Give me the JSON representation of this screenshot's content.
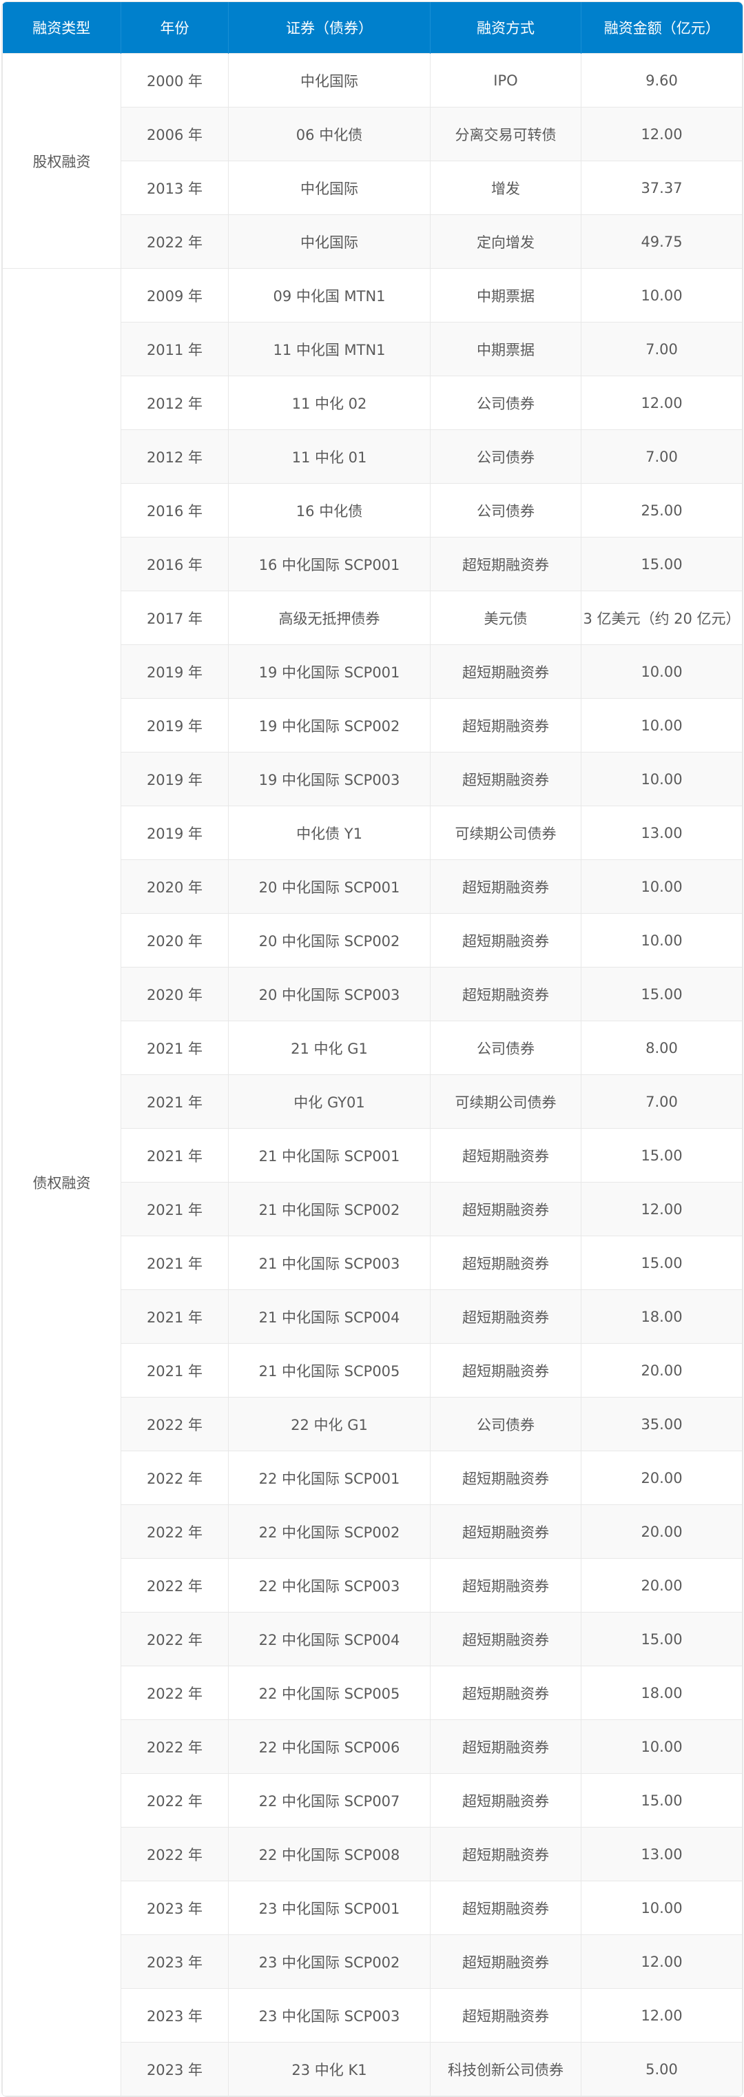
{
  "header": {
    "type": "融资类型",
    "year": "年份",
    "security": "证券（债券）",
    "method": "融资方式",
    "amount": "融资金额（亿元）"
  },
  "groups": [
    {
      "type": "股权融资",
      "rows": [
        [
          "2000 年",
          "中化国际",
          "IPO",
          "9.60"
        ],
        [
          "2006 年",
          "06 中化债",
          "分离交易可转债",
          "12.00"
        ],
        [
          "2013 年",
          "中化国际",
          "增发",
          "37.37"
        ],
        [
          "2022 年",
          "中化国际",
          "定向增发",
          "49.75"
        ]
      ]
    },
    {
      "type": "债权融资",
      "rows": [
        [
          "2009 年",
          "09 中化国 MTN1",
          "中期票据",
          "10.00"
        ],
        [
          "2011 年",
          "11 中化国 MTN1",
          "中期票据",
          "7.00"
        ],
        [
          "2012 年",
          "11 中化 02",
          "公司债券",
          "12.00"
        ],
        [
          "2012 年",
          "11 中化 01",
          "公司债券",
          "7.00"
        ],
        [
          "2016 年",
          "16 中化债",
          "公司债券",
          "25.00"
        ],
        [
          "2016 年",
          "16 中化国际 SCP001",
          "超短期融资券",
          "15.00"
        ],
        [
          "2017 年",
          "高级无抵押债券",
          "美元债",
          "3 亿美元（约 20 亿元）"
        ],
        [
          "2019 年",
          "19 中化国际 SCP001",
          "超短期融资券",
          "10.00"
        ],
        [
          "2019 年",
          "19 中化国际 SCP002",
          "超短期融资券",
          "10.00"
        ],
        [
          "2019 年",
          "19 中化国际 SCP003",
          "超短期融资券",
          "10.00"
        ],
        [
          "2019 年",
          "中化债 Y1",
          "可续期公司债券",
          "13.00"
        ],
        [
          "2020 年",
          "20 中化国际 SCP001",
          "超短期融资券",
          "10.00"
        ],
        [
          "2020 年",
          "20 中化国际 SCP002",
          "超短期融资券",
          "10.00"
        ],
        [
          "2020 年",
          "20 中化国际 SCP003",
          "超短期融资券",
          "15.00"
        ],
        [
          "2021 年",
          "21 中化 G1",
          "公司债券",
          "8.00"
        ],
        [
          "2021 年",
          "中化 GY01",
          "可续期公司债券",
          "7.00"
        ],
        [
          "2021 年",
          "21 中化国际 SCP001",
          "超短期融资券",
          "15.00"
        ],
        [
          "2021 年",
          "21 中化国际 SCP002",
          "超短期融资券",
          "12.00"
        ],
        [
          "2021 年",
          "21 中化国际 SCP003",
          "超短期融资券",
          "15.00"
        ],
        [
          "2021 年",
          "21 中化国际 SCP004",
          "超短期融资券",
          "18.00"
        ],
        [
          "2021 年",
          "21 中化国际 SCP005",
          "超短期融资券",
          "20.00"
        ],
        [
          "2022 年",
          "22 中化 G1",
          "公司债券",
          "35.00"
        ],
        [
          "2022 年",
          "22 中化国际 SCP001",
          "超短期融资券",
          "20.00"
        ],
        [
          "2022 年",
          "22 中化国际 SCP002",
          "超短期融资券",
          "20.00"
        ],
        [
          "2022 年",
          "22 中化国际 SCP003",
          "超短期融资券",
          "20.00"
        ],
        [
          "2022 年",
          "22 中化国际 SCP004",
          "超短期融资券",
          "15.00"
        ],
        [
          "2022 年",
          "22 中化国际 SCP005",
          "超短期融资券",
          "18.00"
        ],
        [
          "2022 年",
          "22 中化国际 SCP006",
          "超短期融资券",
          "10.00"
        ],
        [
          "2022 年",
          "22 中化国际 SCP007",
          "超短期融资券",
          "15.00"
        ],
        [
          "2022 年",
          "22 中化国际 SCP008",
          "超短期融资券",
          "13.00"
        ],
        [
          "2023 年",
          "23 中化国际 SCP001",
          "超短期融资券",
          "10.00"
        ],
        [
          "2023 年",
          "23 中化国际 SCP002",
          "超短期融资券",
          "12.00"
        ],
        [
          "2023 年",
          "23 中化国际 SCP003",
          "超短期融资券",
          "12.00"
        ],
        [
          "2023 年",
          "23 中化 K1",
          "科技创新公司债券",
          "5.00"
        ]
      ]
    }
  ],
  "colors": {
    "header_bg": "#0080cc",
    "header_text": "#ffffff",
    "stripe": "#f9f9f9",
    "text": "#5a5a5a"
  }
}
